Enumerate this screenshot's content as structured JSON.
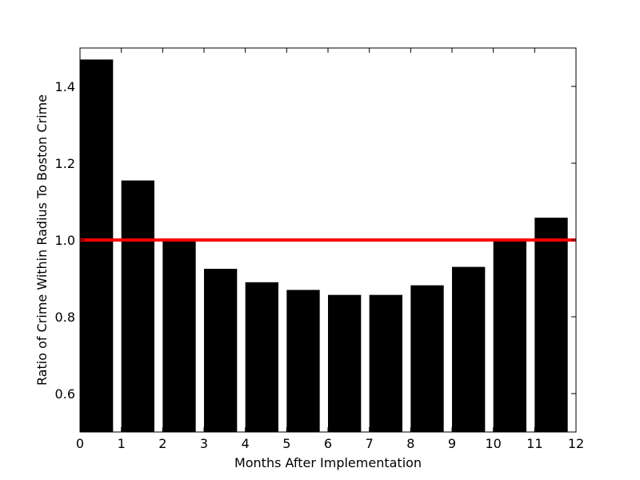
{
  "chart_data": {
    "type": "bar",
    "title": "",
    "xlabel": "Months After Implementation",
    "ylabel": "Ratio of Crime Within Radius To Boston Crime",
    "xlim": [
      0,
      12
    ],
    "ylim": [
      0.5,
      1.5
    ],
    "xticks": [
      0,
      1,
      2,
      3,
      4,
      5,
      6,
      7,
      8,
      9,
      10,
      11,
      12
    ],
    "yticks": [
      0.6,
      0.8,
      1.0,
      1.2,
      1.4
    ],
    "ytick_labels": [
      "0.6",
      "0.8",
      "1.0",
      "1.2",
      "1.4"
    ],
    "bar_width": 0.8,
    "bar_color": "#000000",
    "x": [
      0,
      1,
      2,
      3,
      4,
      5,
      6,
      7,
      8,
      9,
      10,
      11
    ],
    "values": [
      1.47,
      1.155,
      1.0,
      0.925,
      0.89,
      0.87,
      0.857,
      0.857,
      0.882,
      0.93,
      0.997,
      1.058
    ],
    "reference_line": {
      "y": 1.0,
      "color": "#ff0000"
    },
    "grid": false,
    "legend": "none"
  }
}
